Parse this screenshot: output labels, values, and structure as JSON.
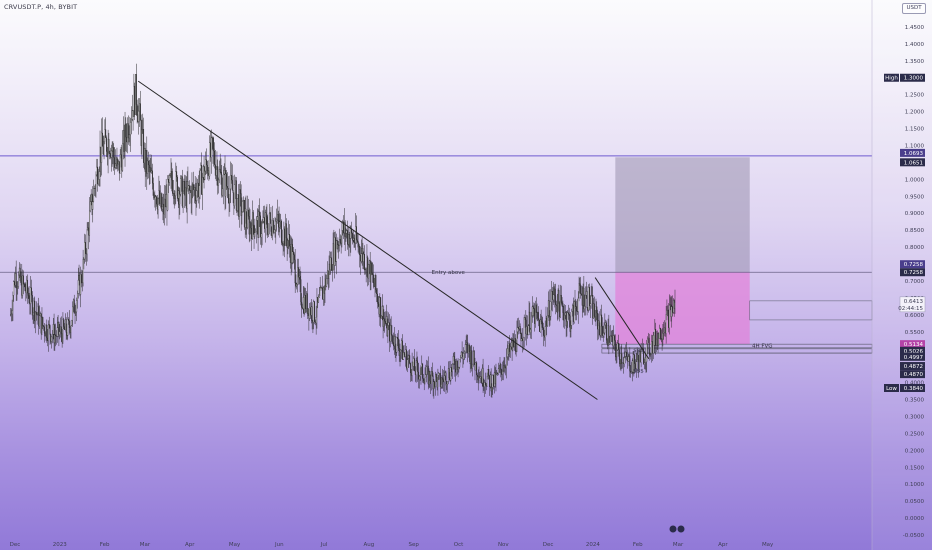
{
  "header": {
    "symbol": "CRVUSDT.P, 4h, BYBIT",
    "currency": "USDT"
  },
  "chart_data": {
    "type": "candlestick",
    "symbol": "CRVUSDT.P",
    "timeframe": "4h",
    "exchange": "BYBIT",
    "ylim": [
      -0.05,
      1.5
    ],
    "y_ticks": [
      1.45,
      1.4,
      1.35,
      1.3,
      1.25,
      1.2,
      1.15,
      1.1,
      1.05,
      1.0,
      0.95,
      0.9,
      0.85,
      0.8,
      0.75,
      0.7,
      0.65,
      0.6,
      0.55,
      0.5,
      0.45,
      0.4,
      0.35,
      0.3,
      0.25,
      0.2,
      0.15,
      0.1,
      0.05,
      0.0,
      -0.05
    ],
    "y_tick_labels": [
      "1.4500",
      "1.4000",
      "1.3500",
      "1.3000",
      "1.2500",
      "1.2000",
      "1.1500",
      "1.1000",
      "1.0500",
      "1.0000",
      "0.9500",
      "0.9000",
      "0.8500",
      "0.8000",
      "0.7500",
      "0.7000",
      "0.6500",
      "0.6000",
      "0.5500",
      "0.5000",
      "0.4500",
      "0.4000",
      "0.3500",
      "0.3000",
      "0.2500",
      "0.2000",
      "0.1500",
      "0.1000",
      "0.0500",
      "0.0000",
      "-0.0500"
    ],
    "x_ticks": [
      {
        "label": "Dec",
        "t": 0.0
      },
      {
        "label": "2023",
        "t": 1.0
      },
      {
        "label": "Feb",
        "t": 2.0
      },
      {
        "label": "Mar",
        "t": 2.9
      },
      {
        "label": "Apr",
        "t": 3.9
      },
      {
        "label": "May",
        "t": 4.9
      },
      {
        "label": "Jun",
        "t": 5.9
      },
      {
        "label": "Jul",
        "t": 6.9
      },
      {
        "label": "Aug",
        "t": 7.9
      },
      {
        "label": "Sep",
        "t": 8.9
      },
      {
        "label": "Oct",
        "t": 9.9
      },
      {
        "label": "Nov",
        "t": 10.9
      },
      {
        "label": "Dec",
        "t": 11.9
      },
      {
        "label": "2024",
        "t": 12.9
      },
      {
        "label": "Feb",
        "t": 13.9
      },
      {
        "label": "Mar",
        "t": 14.8
      },
      {
        "label": "Apr",
        "t": 15.8
      },
      {
        "label": "May",
        "t": 16.8
      }
    ],
    "price_path": [
      [
        -0.1,
        0.6
      ],
      [
        0.0,
        0.72
      ],
      [
        0.3,
        0.66
      ],
      [
        0.6,
        0.57
      ],
      [
        0.9,
        0.54
      ],
      [
        1.2,
        0.56
      ],
      [
        1.5,
        0.72
      ],
      [
        1.7,
        0.92
      ],
      [
        1.9,
        1.08
      ],
      [
        2.1,
        1.12
      ],
      [
        2.3,
        1.02
      ],
      [
        2.5,
        1.15
      ],
      [
        2.7,
        1.26
      ],
      [
        2.9,
        1.05
      ],
      [
        3.1,
        0.98
      ],
      [
        3.3,
        0.9
      ],
      [
        3.5,
        1.0
      ],
      [
        3.8,
        0.95
      ],
      [
        4.1,
        0.98
      ],
      [
        4.4,
        1.08
      ],
      [
        4.6,
        1.0
      ],
      [
        4.9,
        0.96
      ],
      [
        5.2,
        0.87
      ],
      [
        5.5,
        0.86
      ],
      [
        5.8,
        0.88
      ],
      [
        6.1,
        0.82
      ],
      [
        6.4,
        0.65
      ],
      [
        6.7,
        0.6
      ],
      [
        6.9,
        0.68
      ],
      [
        7.1,
        0.78
      ],
      [
        7.3,
        0.85
      ],
      [
        7.6,
        0.82
      ],
      [
        7.9,
        0.74
      ],
      [
        8.1,
        0.65
      ],
      [
        8.3,
        0.56
      ],
      [
        8.6,
        0.5
      ],
      [
        8.9,
        0.44
      ],
      [
        9.2,
        0.42
      ],
      [
        9.5,
        0.4
      ],
      [
        9.8,
        0.45
      ],
      [
        10.1,
        0.5
      ],
      [
        10.4,
        0.42
      ],
      [
        10.7,
        0.4
      ],
      [
        11.0,
        0.48
      ],
      [
        11.3,
        0.55
      ],
      [
        11.6,
        0.6
      ],
      [
        11.8,
        0.55
      ],
      [
        12.0,
        0.66
      ],
      [
        12.2,
        0.62
      ],
      [
        12.4,
        0.58
      ],
      [
        12.6,
        0.66
      ],
      [
        12.8,
        0.65
      ],
      [
        13.0,
        0.58
      ],
      [
        13.2,
        0.55
      ],
      [
        13.4,
        0.5
      ],
      [
        13.6,
        0.47
      ],
      [
        13.8,
        0.45
      ],
      [
        14.0,
        0.48
      ],
      [
        14.2,
        0.51
      ],
      [
        14.4,
        0.55
      ],
      [
        14.6,
        0.6
      ],
      [
        14.75,
        0.64
      ]
    ],
    "trendlines": [
      {
        "from": [
          2.75,
          1.29
        ],
        "to": [
          13.0,
          0.35
        ]
      },
      {
        "from": [
          12.95,
          0.71
        ],
        "to": [
          14.15,
          0.47
        ]
      }
    ],
    "horizontal_levels": [
      {
        "value": 1.0693,
        "label": "1.0693"
      },
      {
        "value": 1.0651,
        "label": "1.0651"
      },
      {
        "value": 0.7258,
        "label": "0.7258",
        "note": "Entry above"
      },
      {
        "value": 0.7258,
        "label": "0.7258"
      },
      {
        "value": 0.5134,
        "label": "0.5134"
      },
      {
        "value": 0.5026,
        "label": "0.5026"
      },
      {
        "value": 0.4997,
        "label": "0.4997"
      },
      {
        "value": 0.4872,
        "label": "0.4872"
      },
      {
        "value": 0.487,
        "label": "0.4870"
      }
    ],
    "high": {
      "label": "High",
      "value": "1.3000"
    },
    "low": {
      "label": "Low",
      "value": "0.3840"
    },
    "current_price": {
      "value": "0.6413",
      "countdown": "02:44:15"
    },
    "position": {
      "entry": 0.7258,
      "target": 1.0651,
      "stop": 0.5134,
      "t_start": 13.4,
      "t_end": 16.4
    },
    "annotations": [
      {
        "text": "Entry above",
        "t": 9.3,
        "y": 0.7258
      },
      {
        "text": "4H FVG",
        "t": 16.45,
        "y": 0.5
      },
      {
        "text": "$$$",
        "t": 13.8,
        "y": 0.49
      },
      {
        "text": "$$$",
        "t": 13.8,
        "y": 0.43
      }
    ],
    "colors": {
      "stop_box": "#e27fd8",
      "target_box": "#9a91ae",
      "level_line": "#6f5bd0",
      "dark_line": "#272727",
      "price_tag": "#2b2b4a"
    }
  }
}
